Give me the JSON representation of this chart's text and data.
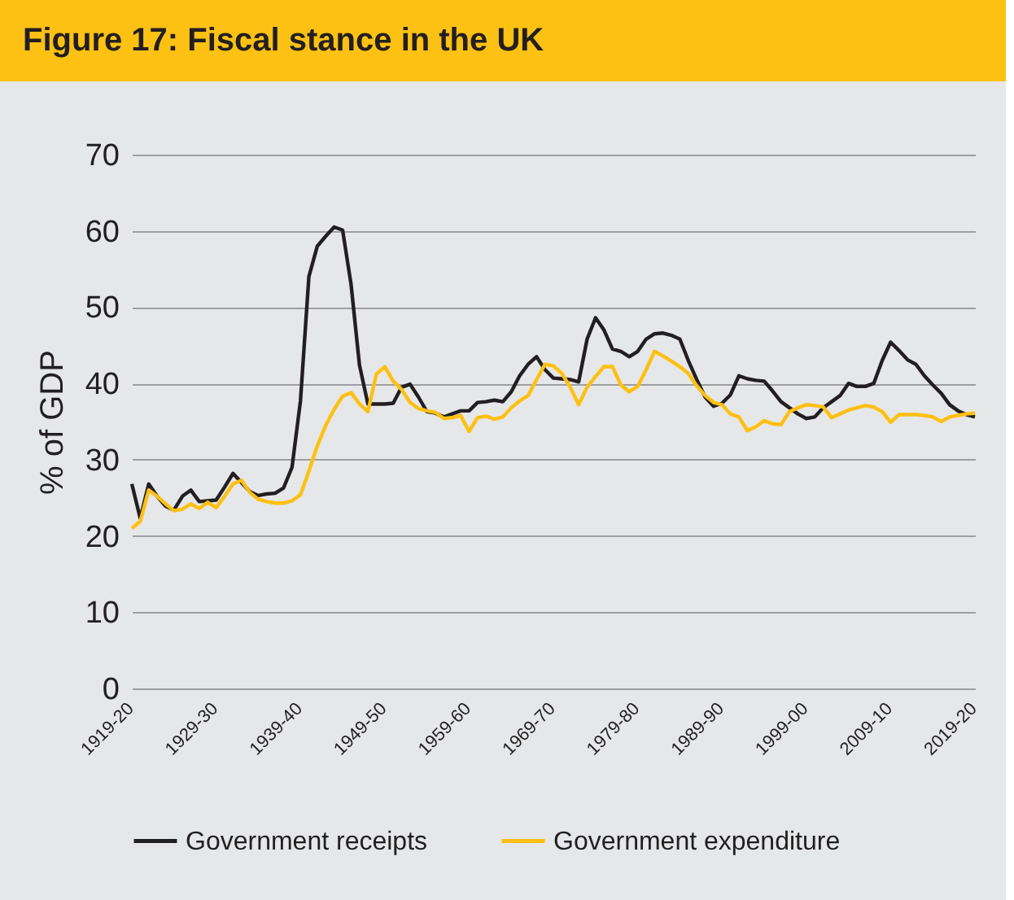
{
  "chart_data": {
    "type": "line",
    "title": "Figure 17: Fiscal stance in the UK",
    "ylabel": "% of GDP",
    "categories": [
      "1919-20",
      null,
      null,
      null,
      null,
      null,
      null,
      null,
      null,
      null,
      "1929-30",
      null,
      null,
      null,
      null,
      null,
      null,
      null,
      null,
      null,
      "1939-40",
      null,
      null,
      null,
      null,
      null,
      null,
      null,
      null,
      null,
      "1949-50",
      null,
      null,
      null,
      null,
      null,
      null,
      null,
      null,
      null,
      "1959-60",
      null,
      null,
      null,
      null,
      null,
      null,
      null,
      null,
      null,
      "1969-70",
      null,
      null,
      null,
      null,
      null,
      null,
      null,
      null,
      null,
      "1979-80",
      null,
      null,
      null,
      null,
      null,
      null,
      null,
      null,
      null,
      "1989-90",
      null,
      null,
      null,
      null,
      null,
      null,
      null,
      null,
      null,
      "1999-00",
      null,
      null,
      null,
      null,
      null,
      null,
      null,
      null,
      null,
      "2009-10",
      null,
      null,
      null,
      null,
      null,
      null,
      null,
      null,
      null,
      "2019-20"
    ],
    "ylim": [
      0,
      70
    ],
    "yticks": [
      0,
      10,
      20,
      30,
      40,
      50,
      60,
      70
    ],
    "grid": "y",
    "legend": "bottom",
    "series": [
      {
        "name": "Government receipts",
        "color": "#231f20",
        "values": [
          26.8,
          22.3,
          26.8,
          25.2,
          23.9,
          23.4,
          25.2,
          26,
          24.5,
          24.6,
          24.7,
          26.4,
          28.2,
          27,
          25.8,
          25.3,
          25.5,
          25.6,
          26.3,
          29,
          37.7,
          54,
          58,
          59.3,
          60.5,
          60.1,
          53,
          42.4,
          37.3,
          37.3,
          37.3,
          37.4,
          39.5,
          39.9,
          38.2,
          36.3,
          36.1,
          35.6,
          36,
          36.4,
          36.4,
          37.5,
          37.6,
          37.8,
          37.6,
          38.9,
          41,
          42.5,
          43.5,
          41.8,
          40.7,
          40.6,
          40.5,
          40.2,
          45.8,
          48.6,
          47,
          44.5,
          44.2,
          43.5,
          44.2,
          45.8,
          46.5,
          46.6,
          46.3,
          45.8,
          43,
          40.5,
          38.2,
          37,
          37.4,
          38.5,
          41,
          40.6,
          40.4,
          40.3,
          39,
          37.6,
          36.8,
          36,
          35.4,
          35.6,
          36.8,
          37.6,
          38.4,
          40,
          39.6,
          39.6,
          40,
          43,
          45.4,
          44.3,
          43.1,
          42.5,
          41,
          39.8,
          38.7,
          37.2,
          36.4,
          35.9,
          35.6
        ]
      },
      {
        "name": "Government expenditure",
        "color": "#fdc012",
        "values": [
          21,
          21.9,
          26,
          25.2,
          24.2,
          23.3,
          23.5,
          24.2,
          23.6,
          24.4,
          23.7,
          25.2,
          26.8,
          27.3,
          25.7,
          24.8,
          24.5,
          24.3,
          24.3,
          24.6,
          25.4,
          28.5,
          31.8,
          34.5,
          36.6,
          38.3,
          38.8,
          37.3,
          36.3,
          41.2,
          42.2,
          40.3,
          39.2,
          37.5,
          36.7,
          36.4,
          36.2,
          35.4,
          35.5,
          35.8,
          33.7,
          35.5,
          35.7,
          35.3,
          35.6,
          36.8,
          37.7,
          38.4,
          40.5,
          42.5,
          42.3,
          41.3,
          39.5,
          37.2,
          39.5,
          40.9,
          42.2,
          42.2,
          39.8,
          38.9,
          39.6,
          41.8,
          44.2,
          43.6,
          42.9,
          42.2,
          41.3,
          39.7,
          38.4,
          37.5,
          37.2,
          36,
          35.6,
          33.8,
          34.3,
          35.1,
          34.7,
          34.6,
          36.3,
          36.8,
          37.2,
          37.1,
          36.9,
          35.5,
          36,
          36.5,
          36.8,
          37.1,
          36.9,
          36.3,
          34.9,
          35.9,
          35.9,
          35.9,
          35.8,
          35.6,
          35,
          35.6,
          35.8,
          36,
          36.1
        ]
      }
    ]
  }
}
